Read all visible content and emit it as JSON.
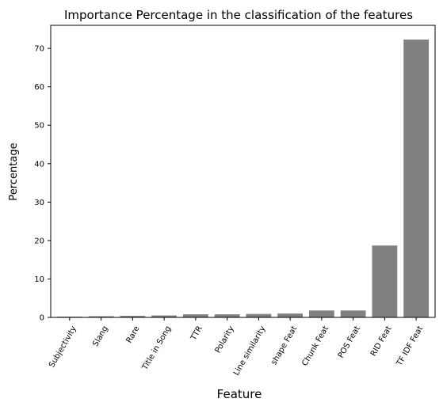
{
  "chart_data": {
    "type": "bar",
    "title": "Importance Percentage in the classification of the features",
    "xlabel": "Feature",
    "ylabel": "Percentage",
    "categories": [
      "Subjectivity",
      "Slang",
      "Rare",
      "Title in Song",
      "TTR",
      "Polarity",
      "Line similarity",
      "shape Feat",
      "Chunk Feat",
      "POS Feat",
      "RID Feat",
      "TF IDF Feat"
    ],
    "values": [
      0.2,
      0.3,
      0.4,
      0.5,
      0.8,
      0.8,
      0.9,
      1.0,
      1.8,
      1.8,
      18.7,
      72.3
    ],
    "ylim": [
      0,
      76
    ],
    "yticks": [
      0,
      10,
      20,
      30,
      40,
      50,
      60,
      70
    ],
    "bar_color": "#808080",
    "grid": false
  }
}
